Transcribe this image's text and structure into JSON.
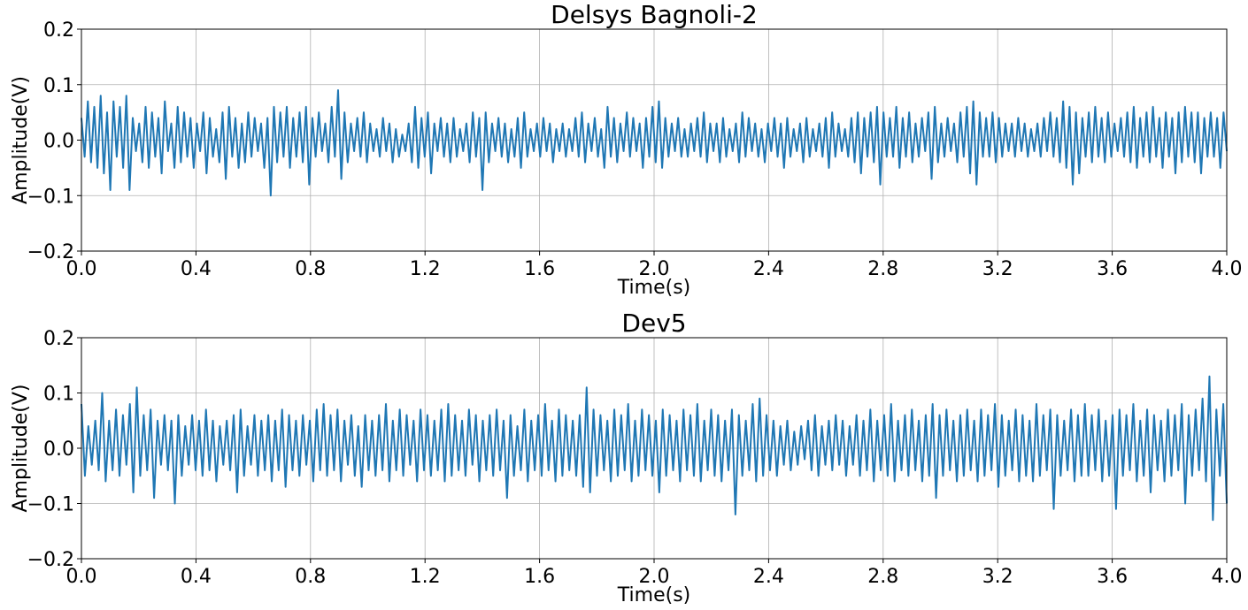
{
  "chart_data": [
    {
      "type": "line",
      "title": "Delsys Bagnoli-2",
      "xlabel": "Time(s)",
      "ylabel": "Amplitude(V)",
      "xlim": [
        0.0,
        4.0
      ],
      "ylim": [
        -0.2,
        0.2
      ],
      "x_ticks": [
        "0.0",
        "0.4",
        "0.8",
        "1.2",
        "1.6",
        "2.0",
        "2.4",
        "2.8",
        "3.2",
        "3.6",
        "4.0"
      ],
      "y_ticks": [
        "−0.2",
        "−0.1",
        "0.0",
        "0.1",
        "0.2"
      ],
      "grid": true,
      "line_color": "#1f77b4",
      "series": [
        {
          "x_range": [
            0.0,
            4.0
          ],
          "values": [
            0.04,
            -0.03,
            0.07,
            -0.04,
            0.06,
            -0.05,
            0.08,
            -0.06,
            0.05,
            -0.09,
            0.07,
            -0.03,
            0.06,
            -0.05,
            0.08,
            -0.09,
            0.04,
            -0.02,
            0.03,
            -0.04,
            0.06,
            -0.05,
            0.05,
            -0.03,
            0.04,
            -0.06,
            0.07,
            -0.02,
            0.03,
            -0.05,
            0.06,
            -0.04,
            0.05,
            -0.03,
            0.04,
            -0.05,
            0.03,
            -0.02,
            0.05,
            -0.06,
            0.04,
            -0.03,
            0.02,
            -0.04,
            0.05,
            -0.07,
            0.06,
            -0.03,
            0.04,
            -0.05,
            0.03,
            -0.04,
            0.05,
            -0.03,
            0.04,
            -0.02,
            0.03,
            -0.05,
            0.04,
            -0.1,
            0.06,
            -0.04,
            0.05,
            -0.03,
            0.06,
            -0.05,
            0.04,
            -0.03,
            0.05,
            -0.04,
            0.06,
            -0.08,
            0.04,
            -0.03,
            0.05,
            -0.02,
            0.03,
            -0.04,
            0.06,
            -0.03,
            0.09,
            -0.07,
            0.05,
            -0.04,
            0.03,
            -0.02,
            0.04,
            -0.03,
            0.05,
            -0.04,
            0.03,
            -0.02,
            0.02,
            -0.03,
            0.04,
            -0.02,
            0.03,
            -0.04,
            0.02,
            -0.03,
            0.01,
            -0.02,
            0.03,
            -0.04,
            0.06,
            -0.05,
            0.04,
            -0.03,
            0.05,
            -0.06,
            0.03,
            -0.02,
            0.04,
            -0.03,
            0.03,
            -0.04,
            0.04,
            -0.03,
            0.02,
            -0.02,
            0.03,
            -0.04,
            0.05,
            -0.03,
            0.04,
            -0.09,
            0.05,
            -0.04,
            0.03,
            -0.02,
            0.04,
            -0.03,
            0.03,
            -0.04,
            0.02,
            -0.03,
            0.04,
            -0.05,
            0.05,
            -0.03,
            0.02,
            -0.02,
            0.03,
            -0.03,
            0.04,
            -0.02,
            0.03,
            -0.04,
            0.02,
            -0.02,
            0.03,
            -0.03,
            0.02,
            -0.02,
            0.04,
            -0.03,
            0.05,
            -0.04,
            0.03,
            -0.02,
            0.04,
            -0.03,
            0.02,
            -0.05,
            0.06,
            -0.03,
            0.04,
            -0.04,
            0.03,
            -0.02,
            0.05,
            -0.03,
            0.04,
            -0.02,
            0.03,
            -0.05,
            0.04,
            -0.03,
            0.06,
            -0.04,
            0.07,
            -0.05,
            0.04,
            -0.03,
            0.03,
            -0.02,
            0.04,
            -0.03,
            0.02,
            -0.03,
            0.03,
            -0.02,
            0.04,
            -0.03,
            0.05,
            -0.04,
            0.03,
            -0.02,
            0.03,
            -0.04,
            0.04,
            -0.03,
            0.02,
            -0.02,
            0.03,
            -0.04,
            0.05,
            -0.03,
            0.04,
            -0.02,
            0.03,
            -0.03,
            0.02,
            -0.04,
            0.03,
            -0.02,
            0.04,
            -0.03,
            0.03,
            -0.05,
            0.04,
            -0.03,
            0.02,
            -0.02,
            0.03,
            -0.04,
            0.04,
            -0.03,
            0.02,
            -0.02,
            0.03,
            -0.03,
            0.04,
            -0.05,
            0.05,
            -0.03,
            0.03,
            -0.02,
            0.02,
            -0.03,
            0.04,
            -0.04,
            0.05,
            -0.06,
            0.04,
            -0.03,
            0.05,
            -0.04,
            0.06,
            -0.08,
            0.05,
            -0.03,
            0.04,
            -0.03,
            0.06,
            -0.05,
            0.04,
            -0.03,
            0.05,
            -0.04,
            0.03,
            -0.03,
            0.04,
            -0.02,
            0.05,
            -0.07,
            0.06,
            -0.04,
            0.03,
            -0.03,
            0.04,
            -0.02,
            0.03,
            -0.04,
            0.05,
            -0.03,
            0.06,
            -0.06,
            0.07,
            -0.08,
            0.05,
            -0.03,
            0.04,
            -0.03,
            0.05,
            -0.04,
            0.04,
            -0.03,
            0.03,
            -0.02,
            0.03,
            -0.03,
            0.04,
            -0.02,
            0.03,
            -0.03,
            0.02,
            -0.02,
            0.03,
            -0.03,
            0.04,
            -0.02,
            0.05,
            -0.03,
            0.04,
            -0.04,
            0.07,
            -0.05,
            0.06,
            -0.08,
            0.05,
            -0.06,
            0.04,
            -0.03,
            0.05,
            -0.04,
            0.06,
            -0.03,
            0.04,
            -0.04,
            0.05,
            -0.03,
            0.03,
            -0.02,
            0.04,
            -0.03,
            0.05,
            -0.04,
            0.06,
            -0.05,
            0.04,
            -0.03,
            0.05,
            -0.04,
            0.06,
            -0.03,
            0.04,
            -0.05,
            0.05,
            -0.03,
            0.04,
            -0.06,
            0.05,
            -0.04,
            0.06,
            -0.03,
            0.05,
            -0.04,
            0.05,
            -0.06,
            0.04,
            -0.03,
            0.05,
            -0.03,
            0.04,
            -0.05,
            0.05,
            -0.02
          ]
        }
      ]
    },
    {
      "type": "line",
      "title": "Dev5",
      "xlabel": "Time(s)",
      "ylabel": "Amplitude(V)",
      "xlim": [
        0.0,
        4.0
      ],
      "ylim": [
        -0.2,
        0.2
      ],
      "x_ticks": [
        "0.0",
        "0.4",
        "0.8",
        "1.2",
        "1.6",
        "2.0",
        "2.4",
        "2.8",
        "3.2",
        "3.6",
        "4.0"
      ],
      "y_ticks": [
        "−0.2",
        "−0.1",
        "0.0",
        "0.1",
        "0.2"
      ],
      "grid": true,
      "line_color": "#1f77b4",
      "series": [
        {
          "x_range": [
            0.0,
            4.0
          ],
          "values": [
            0.08,
            -0.05,
            0.04,
            -0.03,
            0.05,
            -0.04,
            0.1,
            -0.06,
            0.05,
            -0.04,
            0.07,
            -0.05,
            0.06,
            -0.03,
            0.08,
            -0.08,
            0.11,
            -0.05,
            0.06,
            -0.04,
            0.07,
            -0.09,
            0.05,
            -0.03,
            0.06,
            -0.04,
            0.05,
            -0.1,
            0.06,
            -0.05,
            0.04,
            -0.03,
            0.06,
            -0.04,
            0.05,
            -0.05,
            0.07,
            -0.04,
            0.05,
            -0.06,
            0.04,
            -0.03,
            0.05,
            -0.04,
            0.06,
            -0.08,
            0.07,
            -0.05,
            0.04,
            -0.03,
            0.06,
            -0.05,
            0.05,
            -0.04,
            0.06,
            -0.06,
            0.05,
            -0.04,
            0.07,
            -0.07,
            0.06,
            -0.04,
            0.05,
            -0.05,
            0.06,
            -0.03,
            0.05,
            -0.06,
            0.07,
            -0.04,
            0.08,
            -0.05,
            0.06,
            -0.04,
            0.07,
            -0.06,
            0.05,
            -0.03,
            0.06,
            -0.05,
            0.04,
            -0.07,
            0.06,
            -0.04,
            0.05,
            -0.05,
            0.06,
            -0.04,
            0.08,
            -0.06,
            0.05,
            -0.04,
            0.07,
            -0.05,
            0.06,
            -0.03,
            0.05,
            -0.06,
            0.07,
            -0.04,
            0.06,
            -0.05,
            0.05,
            -0.04,
            0.07,
            -0.06,
            0.08,
            -0.05,
            0.06,
            -0.04,
            0.05,
            -0.05,
            0.07,
            -0.03,
            0.06,
            -0.06,
            0.05,
            -0.04,
            0.06,
            -0.05,
            0.07,
            -0.04,
            0.05,
            -0.09,
            0.06,
            -0.05,
            0.04,
            -0.04,
            0.07,
            -0.06,
            0.05,
            -0.04,
            0.06,
            -0.05,
            0.08,
            -0.04,
            0.05,
            -0.06,
            0.07,
            -0.05,
            0.06,
            -0.04,
            0.05,
            -0.05,
            0.06,
            -0.07,
            0.11,
            -0.08,
            0.07,
            -0.05,
            0.06,
            -0.04,
            0.05,
            -0.06,
            0.07,
            -0.05,
            0.06,
            -0.04,
            0.08,
            -0.06,
            0.05,
            -0.05,
            0.07,
            -0.04,
            0.06,
            -0.05,
            0.05,
            -0.08,
            0.07,
            -0.05,
            0.06,
            -0.04,
            0.05,
            -0.06,
            0.07,
            -0.04,
            0.06,
            -0.05,
            0.08,
            -0.06,
            0.05,
            -0.04,
            0.07,
            -0.05,
            0.06,
            -0.06,
            0.05,
            -0.04,
            0.07,
            -0.12,
            0.06,
            -0.05,
            0.05,
            -0.04,
            0.08,
            -0.06,
            0.09,
            -0.05,
            0.06,
            -0.04,
            0.05,
            -0.05,
            0.04,
            -0.03,
            0.05,
            -0.04,
            0.03,
            -0.03,
            0.04,
            -0.02,
            0.05,
            -0.04,
            0.06,
            -0.05,
            0.04,
            -0.03,
            0.05,
            -0.04,
            0.06,
            -0.03,
            0.05,
            -0.05,
            0.04,
            -0.03,
            0.06,
            -0.05,
            0.05,
            -0.04,
            0.07,
            -0.06,
            0.05,
            -0.04,
            0.06,
            -0.05,
            0.08,
            -0.06,
            0.05,
            -0.04,
            0.06,
            -0.05,
            0.07,
            -0.04,
            0.05,
            -0.06,
            0.06,
            -0.05,
            0.08,
            -0.09,
            0.06,
            -0.05,
            0.07,
            -0.04,
            0.05,
            -0.06,
            0.06,
            -0.05,
            0.07,
            -0.04,
            0.05,
            -0.06,
            0.07,
            -0.05,
            0.06,
            -0.04,
            0.08,
            -0.07,
            0.06,
            -0.05,
            0.05,
            -0.04,
            0.07,
            -0.06,
            0.06,
            -0.05,
            0.05,
            -0.06,
            0.08,
            -0.05,
            0.06,
            -0.04,
            0.07,
            -0.11,
            0.06,
            -0.05,
            0.05,
            -0.04,
            0.07,
            -0.06,
            0.06,
            -0.05,
            0.08,
            -0.05,
            0.06,
            -0.04,
            0.07,
            -0.06,
            0.05,
            -0.05,
            0.06,
            -0.11,
            0.07,
            -0.05,
            0.06,
            -0.04,
            0.08,
            -0.06,
            0.05,
            -0.05,
            0.07,
            -0.08,
            0.06,
            -0.04,
            0.05,
            -0.06,
            0.07,
            -0.05,
            0.06,
            -0.04,
            0.08,
            -0.1,
            0.06,
            -0.05,
            0.07,
            -0.04,
            0.09,
            -0.06,
            0.13,
            -0.13,
            0.07,
            -0.05,
            0.08,
            -0.1
          ]
        }
      ]
    }
  ]
}
